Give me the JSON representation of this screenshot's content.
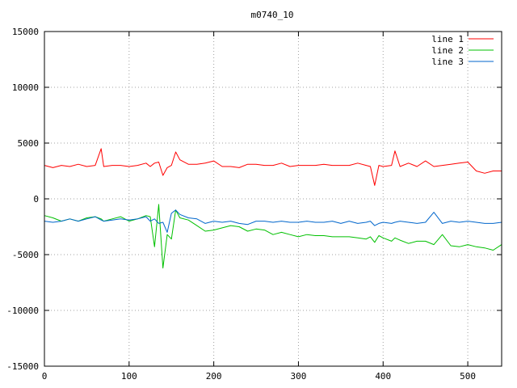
{
  "chart_data": {
    "type": "line",
    "title": "m0740_10",
    "xlabel": "",
    "ylabel": "",
    "xlim": [
      0,
      540
    ],
    "ylim": [
      -15000,
      15000
    ],
    "xticks": [
      0,
      100,
      200,
      300,
      400,
      500
    ],
    "yticks": [
      -15000,
      -10000,
      -5000,
      0,
      5000,
      10000,
      15000
    ],
    "grid": true,
    "legend_position": "top-right",
    "x": [
      0,
      10,
      20,
      30,
      40,
      50,
      60,
      67,
      70,
      80,
      90,
      100,
      110,
      120,
      125,
      130,
      135,
      140,
      145,
      150,
      155,
      160,
      170,
      180,
      190,
      200,
      210,
      220,
      230,
      240,
      250,
      260,
      270,
      280,
      290,
      300,
      310,
      320,
      330,
      340,
      350,
      360,
      370,
      380,
      385,
      390,
      395,
      400,
      410,
      414,
      420,
      430,
      440,
      450,
      460,
      470,
      480,
      490,
      500,
      510,
      520,
      530,
      540
    ],
    "series": [
      {
        "name": "line 1",
        "color": "#ff0000",
        "values": [
          3000,
          2800,
          3000,
          2900,
          3100,
          2900,
          3000,
          4500,
          2900,
          3000,
          3000,
          2900,
          3000,
          3200,
          2900,
          3200,
          3300,
          2100,
          2800,
          3000,
          4200,
          3500,
          3100,
          3100,
          3200,
          3400,
          2900,
          2900,
          2800,
          3100,
          3100,
          3000,
          3000,
          3200,
          2900,
          3000,
          3000,
          3000,
          3100,
          3000,
          3000,
          3000,
          3200,
          3000,
          2900,
          1200,
          3000,
          2900,
          3000,
          4300,
          2900,
          3200,
          2900,
          3400,
          2900,
          3000,
          3100,
          3200,
          3300,
          2500,
          2300,
          2500,
          2500
        ]
      },
      {
        "name": "line 2",
        "color": "#00c000",
        "values": [
          -1500,
          -1700,
          -2000,
          -1800,
          -2000,
          -1700,
          -1600,
          -1800,
          -2000,
          -1800,
          -1600,
          -2000,
          -1800,
          -1500,
          -1600,
          -4300,
          -500,
          -6200,
          -3200,
          -3600,
          -1000,
          -1700,
          -1900,
          -2400,
          -2900,
          -2800,
          -2600,
          -2400,
          -2500,
          -2900,
          -2700,
          -2800,
          -3200,
          -3000,
          -3200,
          -3400,
          -3200,
          -3300,
          -3300,
          -3400,
          -3400,
          -3400,
          -3500,
          -3600,
          -3400,
          -3900,
          -3300,
          -3500,
          -3800,
          -3500,
          -3700,
          -4000,
          -3800,
          -3800,
          -4100,
          -3200,
          -4200,
          -4300,
          -4100,
          -4300,
          -4400,
          -4600,
          -4100
        ]
      },
      {
        "name": "line 3",
        "color": "#0066cc",
        "values": [
          -2000,
          -2100,
          -2000,
          -1800,
          -2000,
          -1800,
          -1600,
          -1900,
          -2000,
          -1900,
          -1800,
          -1900,
          -1800,
          -1600,
          -2000,
          -1800,
          -2200,
          -2100,
          -3000,
          -1300,
          -1000,
          -1400,
          -1700,
          -1800,
          -2200,
          -2000,
          -2100,
          -2000,
          -2200,
          -2300,
          -2000,
          -2000,
          -2100,
          -2000,
          -2100,
          -2100,
          -2000,
          -2100,
          -2100,
          -2000,
          -2200,
          -2000,
          -2200,
          -2100,
          -2000,
          -2400,
          -2200,
          -2100,
          -2200,
          -2100,
          -2000,
          -2100,
          -2200,
          -2100,
          -1200,
          -2200,
          -2000,
          -2100,
          -2000,
          -2100,
          -2200,
          -2200,
          -2100
        ]
      }
    ]
  }
}
